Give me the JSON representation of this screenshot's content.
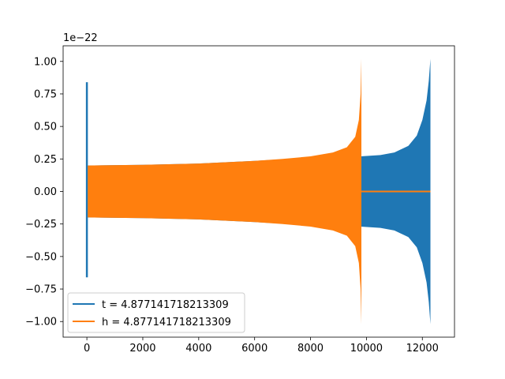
{
  "chart_data": {
    "type": "line",
    "title": "",
    "xlabel": "",
    "ylabel": "",
    "y_offset_label": "1e−22",
    "xlim": [
      -850,
      13150
    ],
    "ylim": [
      -1.12,
      1.12
    ],
    "x_ticks": [
      0,
      2000,
      4000,
      6000,
      8000,
      10000,
      12000
    ],
    "x_tick_labels": [
      "0",
      "2000",
      "4000",
      "6000",
      "8000",
      "10000",
      "12000"
    ],
    "y_ticks": [
      -1.0,
      -0.75,
      -0.5,
      -0.25,
      0.0,
      0.25,
      0.5,
      0.75,
      1.0
    ],
    "y_tick_labels": [
      "−1.00",
      "−0.75",
      "−0.50",
      "−0.25",
      "0.00",
      "0.25",
      "0.50",
      "0.75",
      "1.00"
    ],
    "grid": false,
    "legend_position": "lower-left",
    "series": [
      {
        "name": "t = 4.877141718213309",
        "color": "#1f77b4",
        "description_values": {
          "initial_spike": {
            "x": 0,
            "ymax": 0.84,
            "ymin": -0.66
          },
          "envelope": [
            [
              30,
              0.2
            ],
            [
              2000,
              0.205
            ],
            [
              4000,
              0.215
            ],
            [
              6000,
              0.235
            ],
            [
              8000,
              0.26
            ],
            [
              9800,
              0.27
            ],
            [
              10500,
              0.28
            ],
            [
              11000,
              0.3
            ],
            [
              11500,
              0.35
            ],
            [
              11800,
              0.43
            ],
            [
              12000,
              0.55
            ],
            [
              12150,
              0.7
            ],
            [
              12230,
              0.85
            ],
            [
              12290,
              1.02
            ]
          ],
          "end_x": 12290
        }
      },
      {
        "name": "h = 4.877141718213309",
        "color": "#ff7f0e",
        "description_values": {
          "envelope": [
            [
              30,
              0.2
            ],
            [
              2000,
              0.205
            ],
            [
              4000,
              0.215
            ],
            [
              6000,
              0.235
            ],
            [
              7000,
              0.25
            ],
            [
              8000,
              0.27
            ],
            [
              8800,
              0.3
            ],
            [
              9300,
              0.34
            ],
            [
              9600,
              0.42
            ],
            [
              9730,
              0.55
            ],
            [
              9790,
              0.75
            ],
            [
              9820,
              1.02
            ]
          ],
          "end_x": 9820,
          "flat_after": {
            "x_start": 9820,
            "x_end": 12290,
            "y": 0.0
          }
        }
      }
    ]
  }
}
